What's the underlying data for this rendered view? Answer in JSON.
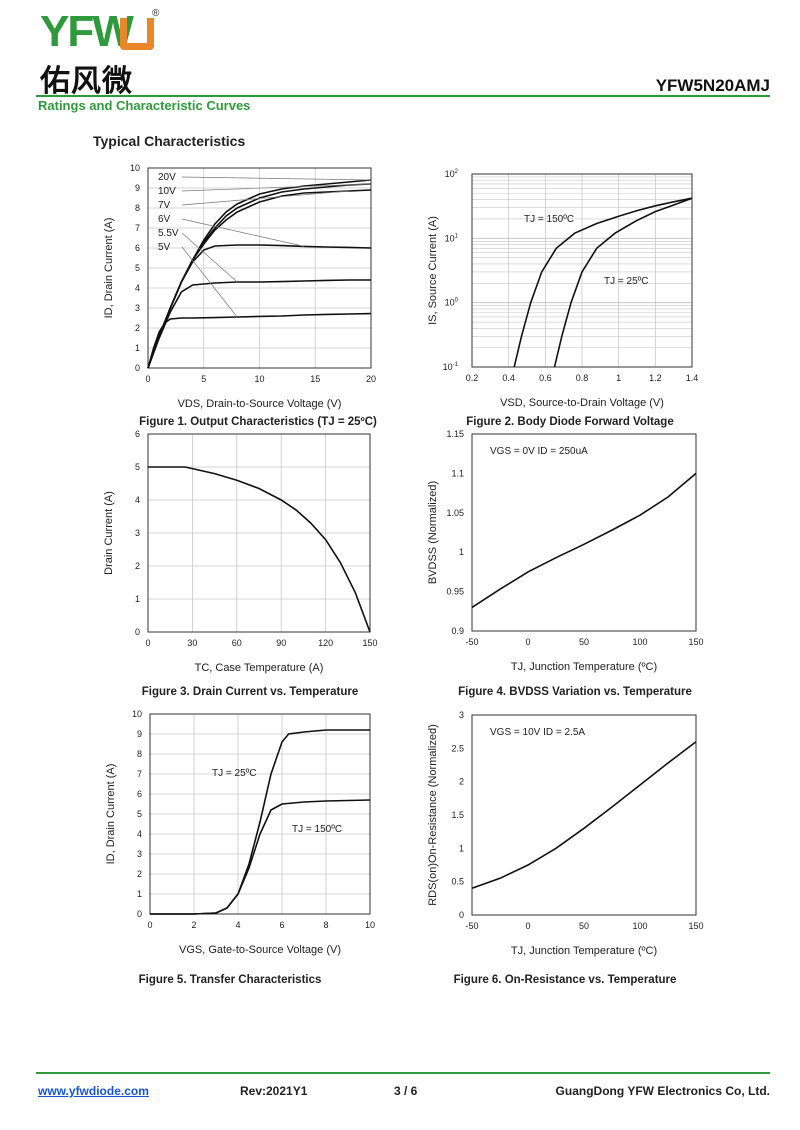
{
  "header": {
    "logo_text": "YFW",
    "logo_cn": "佑风微",
    "reg_mark": "®",
    "part_number": "YFW5N20AMJ",
    "section_title": "Ratings and Characteristic Curves",
    "subtitle": "Typical Characteristics"
  },
  "footer": {
    "website": "www.yfwdiode.com",
    "revision": "Rev:2021Y1",
    "page": "3 / 6",
    "company": "GuangDong YFW Electronics Co, Ltd."
  },
  "colors": {
    "brand_green": "#2f9a3b",
    "brand_orange": "#e8862a",
    "curve": "#111111",
    "grid": "#c8c8c8"
  },
  "chart_data": [
    {
      "id": "fig1",
      "type": "line",
      "title": "Figure 1. Output Characteristics (TJ = 25ºC)",
      "xlabel": "VDS, Drain-to-Source Voltage (V)",
      "ylabel": "ID, Drain Current (A)",
      "xlim": [
        0,
        20
      ],
      "ylim": [
        0,
        10
      ],
      "xticks": [
        0,
        5,
        10,
        15,
        20
      ],
      "yticks": [
        0,
        1,
        2,
        3,
        4,
        5,
        6,
        7,
        8,
        9,
        10
      ],
      "grid": true,
      "series": [
        {
          "name": "20V",
          "x": [
            0,
            1,
            2,
            3,
            4,
            5,
            6,
            7,
            8,
            10,
            12,
            14,
            16,
            18,
            20
          ],
          "y": [
            0,
            1.6,
            3.0,
            4.3,
            5.4,
            6.4,
            7.2,
            7.8,
            8.2,
            8.7,
            8.95,
            9.1,
            9.2,
            9.3,
            9.4
          ]
        },
        {
          "name": "10V",
          "x": [
            0,
            1,
            2,
            3,
            4,
            5,
            6,
            7,
            8,
            10,
            12,
            14,
            16,
            18,
            20
          ],
          "y": [
            0,
            1.6,
            3.0,
            4.3,
            5.4,
            6.3,
            7.0,
            7.6,
            8.0,
            8.5,
            8.8,
            8.95,
            9.05,
            9.15,
            9.2
          ]
        },
        {
          "name": "7V",
          "x": [
            0,
            1,
            2,
            3,
            4,
            5,
            6,
            7,
            8,
            10,
            12,
            14,
            16,
            18,
            20
          ],
          "y": [
            0,
            1.6,
            3.0,
            4.3,
            5.4,
            6.2,
            6.9,
            7.4,
            7.8,
            8.3,
            8.6,
            8.75,
            8.8,
            8.85,
            8.9
          ]
        },
        {
          "name": "6V",
          "x": [
            0,
            1,
            2,
            3,
            4,
            5,
            6,
            8,
            10,
            12,
            14,
            16,
            18,
            20
          ],
          "y": [
            0,
            1.6,
            3.0,
            4.3,
            5.3,
            5.9,
            6.1,
            6.15,
            6.15,
            6.12,
            6.08,
            6.05,
            6.03,
            6.0
          ]
        },
        {
          "name": "5.5V",
          "x": [
            0,
            1,
            2,
            3,
            4,
            6,
            8,
            10,
            12,
            14,
            16,
            18,
            20
          ],
          "y": [
            0,
            1.5,
            2.8,
            3.8,
            4.15,
            4.25,
            4.3,
            4.3,
            4.32,
            4.35,
            4.38,
            4.4,
            4.4
          ]
        },
        {
          "name": "5V",
          "x": [
            0,
            0.5,
            1,
            1.5,
            2,
            3,
            4,
            6,
            8,
            10,
            12,
            14,
            16,
            18,
            20
          ],
          "y": [
            0,
            1.0,
            1.8,
            2.25,
            2.45,
            2.5,
            2.5,
            2.52,
            2.55,
            2.58,
            2.6,
            2.65,
            2.68,
            2.7,
            2.72
          ]
        }
      ]
    },
    {
      "id": "fig2",
      "type": "line",
      "title": "Figure 2. Body Diode Forward Voltage",
      "xlabel": "VSD, Source-to-Drain Voltage (V)",
      "ylabel": "IS, Source Current (A)",
      "xlim": [
        0.2,
        1.4
      ],
      "ylim": [
        0.1,
        100
      ],
      "yscale": "log",
      "xticks": [
        0.2,
        0.4,
        0.6,
        0.8,
        1,
        1.2,
        1.4
      ],
      "yticks": [
        "10-1",
        "100",
        "101",
        "102"
      ],
      "grid": true,
      "series": [
        {
          "name": "TJ = 150ºC",
          "x": [
            0.43,
            0.47,
            0.52,
            0.58,
            0.66,
            0.76,
            0.88,
            1.0,
            1.1,
            1.2,
            1.3,
            1.4
          ],
          "y": [
            0.1,
            0.3,
            1.0,
            3.0,
            7.0,
            12.0,
            17.0,
            22.0,
            27.0,
            32.0,
            37.0,
            42.0
          ]
        },
        {
          "name": "TJ = 25ºC",
          "x": [
            0.65,
            0.69,
            0.74,
            0.8,
            0.88,
            0.98,
            1.1,
            1.2,
            1.3,
            1.4
          ],
          "y": [
            0.1,
            0.3,
            1.0,
            3.0,
            7.0,
            12.0,
            19.0,
            26.0,
            33.0,
            42.0
          ]
        }
      ]
    },
    {
      "id": "fig3",
      "type": "line",
      "title": "Figure 3. Drain Current vs. Temperature",
      "xlabel": "TC, Case Temperature (A)",
      "ylabel": "Drain Current (A)",
      "xlim": [
        0,
        150
      ],
      "ylim": [
        0,
        6
      ],
      "xticks": [
        0,
        30,
        60,
        90,
        120,
        150
      ],
      "yticks": [
        0,
        1,
        2,
        3,
        4,
        5,
        6
      ],
      "grid": true,
      "series": [
        {
          "name": "",
          "x": [
            0,
            25,
            30,
            45,
            60,
            75,
            90,
            100,
            110,
            120,
            130,
            140,
            145,
            150
          ],
          "y": [
            5.0,
            5.0,
            4.95,
            4.8,
            4.6,
            4.35,
            4.0,
            3.7,
            3.3,
            2.8,
            2.1,
            1.2,
            0.6,
            0
          ]
        }
      ]
    },
    {
      "id": "fig4",
      "type": "line",
      "title": "Figure 4. BVDSS Variation vs. Temperature",
      "xlabel": "TJ, Junction Temperature (ºC)",
      "ylabel": "BVDSS (Normalized)",
      "annotation": "VGS = 0V ID = 250uA",
      "xlim": [
        -50,
        150
      ],
      "ylim": [
        0.9,
        1.15
      ],
      "xticks": [
        -50,
        0,
        50,
        100,
        150
      ],
      "yticks": [
        0.9,
        0.95,
        1,
        1.05,
        1.1,
        1.15
      ],
      "grid": false,
      "series": [
        {
          "name": "",
          "x": [
            -50,
            -25,
            0,
            25,
            50,
            75,
            100,
            125,
            150
          ],
          "y": [
            0.93,
            0.953,
            0.975,
            0.993,
            1.01,
            1.028,
            1.047,
            1.07,
            1.1
          ]
        }
      ]
    },
    {
      "id": "fig5",
      "type": "line",
      "title": "Figure 5. Transfer Characteristics",
      "xlabel": "VGS, Gate-to-Source Voltage (V)",
      "ylabel": "ID, Drain Current (A)",
      "xlim": [
        0,
        10
      ],
      "ylim": [
        0,
        10
      ],
      "xticks": [
        0,
        2,
        4,
        6,
        8,
        10
      ],
      "yticks": [
        0,
        1,
        2,
        3,
        4,
        5,
        6,
        7,
        8,
        9,
        10
      ],
      "grid": true,
      "series": [
        {
          "name": "TJ = 25ºC",
          "x": [
            0,
            2,
            3,
            3.5,
            4,
            4.5,
            5,
            5.5,
            6,
            6.3,
            7,
            8,
            10
          ],
          "y": [
            0,
            0,
            0.05,
            0.3,
            1.0,
            2.5,
            4.6,
            7.0,
            8.6,
            9.0,
            9.1,
            9.2,
            9.2
          ]
        },
        {
          "name": "TJ = 150ºC",
          "x": [
            0,
            2,
            3,
            3.5,
            4,
            4.5,
            5,
            5.5,
            6,
            7,
            8,
            10
          ],
          "y": [
            0,
            0,
            0.05,
            0.3,
            1.0,
            2.3,
            4.0,
            5.2,
            5.5,
            5.6,
            5.65,
            5.7
          ]
        }
      ]
    },
    {
      "id": "fig6",
      "type": "line",
      "title": "Figure 6. On-Resistance vs. Temperature",
      "xlabel": "TJ, Junction Temperature (ºC)",
      "ylabel": "RDS(on)On-Resistance (Normalized)",
      "annotation": "VGS = 10V ID = 2.5A",
      "xlim": [
        -50,
        150
      ],
      "ylim": [
        0,
        3
      ],
      "xticks": [
        -50,
        0,
        50,
        100,
        150
      ],
      "yticks": [
        0,
        0.5,
        1,
        1.5,
        2,
        2.5,
        3
      ],
      "grid": false,
      "series": [
        {
          "name": "",
          "x": [
            -50,
            -25,
            0,
            25,
            50,
            75,
            100,
            125,
            150
          ],
          "y": [
            0.4,
            0.55,
            0.75,
            1.0,
            1.3,
            1.62,
            1.95,
            2.28,
            2.6
          ]
        }
      ]
    }
  ]
}
